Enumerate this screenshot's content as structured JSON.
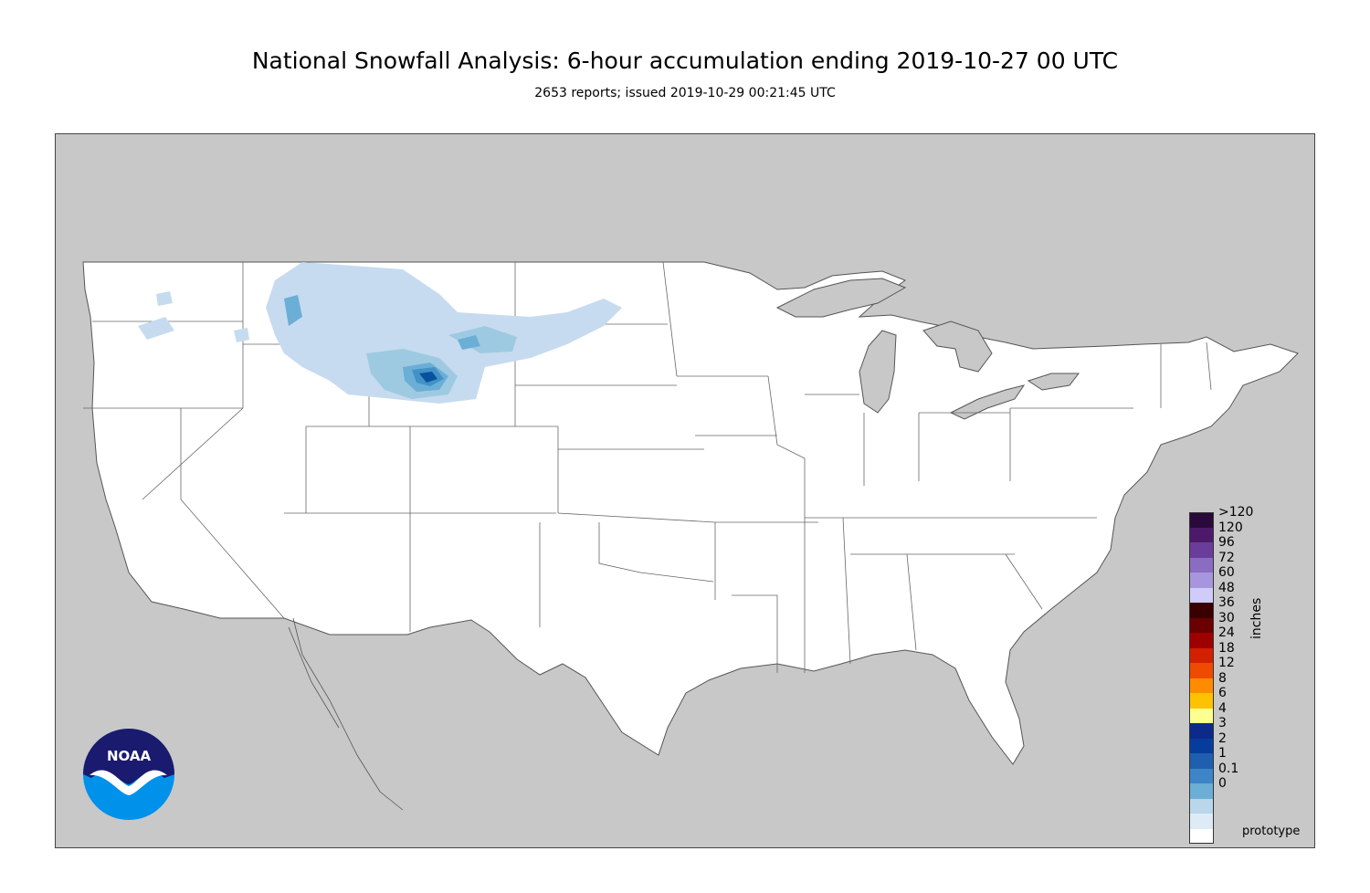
{
  "header": {
    "title": "National Snowfall Analysis: 6-hour accumulation ending 2019-10-27 00 UTC",
    "subtitle": "2653 reports; issued 2019-10-29 00:21:45 UTC"
  },
  "colors": {
    "land_outside": "#c8c8c8",
    "water": "#c8c8c8",
    "us_land": "#ffffff",
    "border_line": "#555555"
  },
  "legend": {
    "unit": "inches",
    "entries": [
      {
        "label": ">120",
        "color": "#2a0a3a"
      },
      {
        "label": "120",
        "color": "#4d1a6b"
      },
      {
        "label": "96",
        "color": "#6a3d9a"
      },
      {
        "label": "72",
        "color": "#8a6cc0"
      },
      {
        "label": "60",
        "color": "#a795dd"
      },
      {
        "label": "48",
        "color": "#d0ccfa"
      },
      {
        "label": "36",
        "color": "#3a0000"
      },
      {
        "label": "30",
        "color": "#6b0000"
      },
      {
        "label": "24",
        "color": "#9e0000"
      },
      {
        "label": "18",
        "color": "#d22000"
      },
      {
        "label": "12",
        "color": "#ee4a00"
      },
      {
        "label": "8",
        "color": "#ff8c00"
      },
      {
        "label": "6",
        "color": "#ffc200"
      },
      {
        "label": "4",
        "color": "#ffff90"
      },
      {
        "label": "3",
        "color": "#0c2a8a"
      },
      {
        "label": "2",
        "color": "#083c9c"
      },
      {
        "label": "1",
        "color": "#1f5fb0"
      },
      {
        "label": "0.1",
        "color": "#3d85c6"
      },
      {
        "label": "0",
        "color": "#6baed6"
      }
    ],
    "bottom_entries": [
      {
        "color": "#b9d6ea"
      },
      {
        "color": "#deebf7"
      },
      {
        "color": "#ffffff"
      }
    ]
  },
  "footer": {
    "note": "prototype"
  },
  "logo": {
    "text": "NOAA",
    "icon": "noaa-logo"
  }
}
